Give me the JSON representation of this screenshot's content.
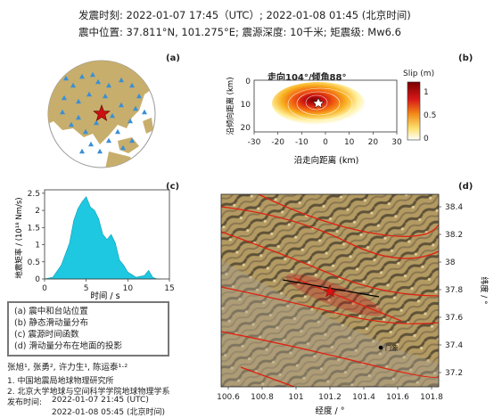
{
  "header": {
    "line1_label": "发震时刻:",
    "line1_value": "2022-01-07 17:45（UTC）;  2022-01-08  01:45 (北京时间)",
    "line2_loc_label": "震中位置:",
    "line2_loc_value": "37.811°N,  101.275°E;",
    "line2_depth": "震源深度: 10千米;",
    "line2_mag": "矩震级: Mw6.6"
  },
  "panels": {
    "a": "(a)",
    "b": "(b)",
    "c": "(c)",
    "d": "(d)"
  },
  "slip_panel": {
    "title": "走向104°/倾角88°",
    "xlabel": "沿走向距离 (km)",
    "ylabel": "沿倾向距离 (km)",
    "colorbar_label": "Slip (m)",
    "x_ticks": [
      "-30",
      "-20",
      "-10",
      "0",
      "10",
      "20",
      "30"
    ],
    "y_ticks": [
      "0",
      "10",
      "20"
    ],
    "cb_ticks": [
      "1",
      "0.5",
      "0"
    ]
  },
  "stf_panel": {
    "ylabel": "地震矩率 / (10¹⁸ Nm/s)",
    "xlabel": "时间 / s",
    "x_ticks": [
      "0",
      "5",
      "10",
      "15"
    ],
    "y_ticks": [
      "0",
      "0.5",
      "1",
      "1.5",
      "2",
      "2.5"
    ]
  },
  "chart_data": {
    "type": "area",
    "x": [
      0,
      1,
      2,
      3,
      3.5,
      4,
      4.5,
      5,
      5.5,
      6,
      6.5,
      7,
      7.5,
      8,
      8.5,
      9,
      9.5,
      10,
      11,
      12,
      12.5,
      13,
      13.5,
      14
    ],
    "values": [
      0,
      0.05,
      0.4,
      1.05,
      1.7,
      2.05,
      2.25,
      2.4,
      2.1,
      2.0,
      1.75,
      1.3,
      1.15,
      1.3,
      1.05,
      0.55,
      0.4,
      0.2,
      0.05,
      0.1,
      0.25,
      0.05,
      0,
      0
    ],
    "xlabel": "时间 / s",
    "ylabel": "地震矩率 / (10¹⁸ Nm/s)",
    "xlim": [
      0,
      15
    ],
    "ylim": [
      0,
      2.6
    ],
    "color": "#1ec8e0"
  },
  "legend": {
    "items": [
      "(a) 震中和台站位置",
      "(b) 静态滑动量分布",
      "(c) 震源时间函数",
      "(d) 滑动量分布在地面的投影"
    ]
  },
  "credits": {
    "authors": "张旭¹, 张勇², 许力生¹, 陈运泰¹·²",
    "aff1": "1. 中国地震局地球物理研究所",
    "aff2": "2. 北京大学地球与空间科学学院地球物理学系",
    "pub_label": "发布时间:",
    "pub1": "2022-01-07  21:45 (UTC)",
    "pub2": "2022-01-08  05:45 (北京时间)"
  },
  "map_panel": {
    "xlabel": "经度 / °",
    "ylabel": "纬度 / °",
    "x_ticks": [
      "100.6",
      "100.8",
      "101",
      "101.2",
      "101.4",
      "101.6",
      "101.8"
    ],
    "y_ticks": [
      "38.4",
      "38.2",
      "38",
      "37.8",
      "37.6",
      "37.4",
      "37.2"
    ],
    "town": "门源"
  },
  "colors": {
    "land": "#c7ae6c",
    "ocean": "#ffffff",
    "station": "#3a8fd6",
    "epicenter": "#cc1111",
    "fault": "#e02010",
    "stf": "#1ec8e0"
  }
}
